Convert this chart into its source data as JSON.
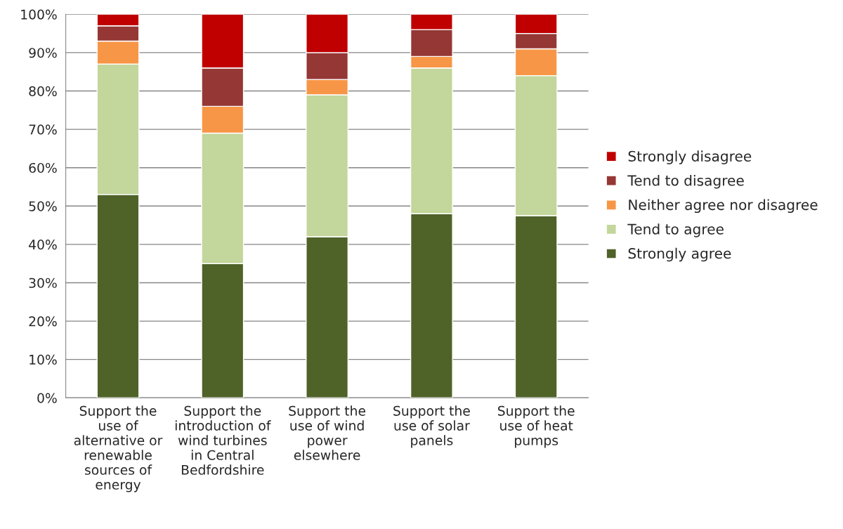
{
  "chart_data": {
    "type": "bar",
    "stacked": true,
    "categories": [
      "Support the\nuse of\nalternative or\nrenewable\nsources of\nenergy",
      "Support the\nintroduction of\nwind turbines\nin Central\nBedfordshire",
      "Support the\nuse of wind\npower\nelsewhere",
      "Support the\nuse of solar\npanels",
      "Support the\nuse of heat\npumps"
    ],
    "series": [
      {
        "name": "Strongly agree",
        "color": "#4f6228",
        "values": [
          53,
          35,
          42,
          48,
          47.5
        ]
      },
      {
        "name": "Tend to agree",
        "color": "#c3d69b",
        "values": [
          34,
          34,
          37,
          38,
          36.5
        ]
      },
      {
        "name": "Neither agree nor disagree",
        "color": "#f79646",
        "values": [
          6,
          7,
          4,
          3,
          7
        ]
      },
      {
        "name": "Tend to disagree",
        "color": "#953735",
        "values": [
          4,
          10,
          7,
          7,
          4
        ]
      },
      {
        "name": "Strongly disagree",
        "color": "#c00000",
        "values": [
          3,
          14,
          10,
          4,
          5
        ]
      }
    ],
    "ylim": [
      0,
      100
    ],
    "yticks": [
      {
        "value": 0,
        "label": "0%"
      },
      {
        "value": 10,
        "label": "10%"
      },
      {
        "value": 20,
        "label": "20%"
      },
      {
        "value": 30,
        "label": "30%"
      },
      {
        "value": 40,
        "label": "40%"
      },
      {
        "value": 50,
        "label": "50%"
      },
      {
        "value": 60,
        "label": "60%"
      },
      {
        "value": 70,
        "label": "70%"
      },
      {
        "value": 80,
        "label": "80%"
      },
      {
        "value": 90,
        "label": "90%"
      },
      {
        "value": 100,
        "label": "100%"
      }
    ],
    "grid": "y",
    "legend": "right"
  }
}
